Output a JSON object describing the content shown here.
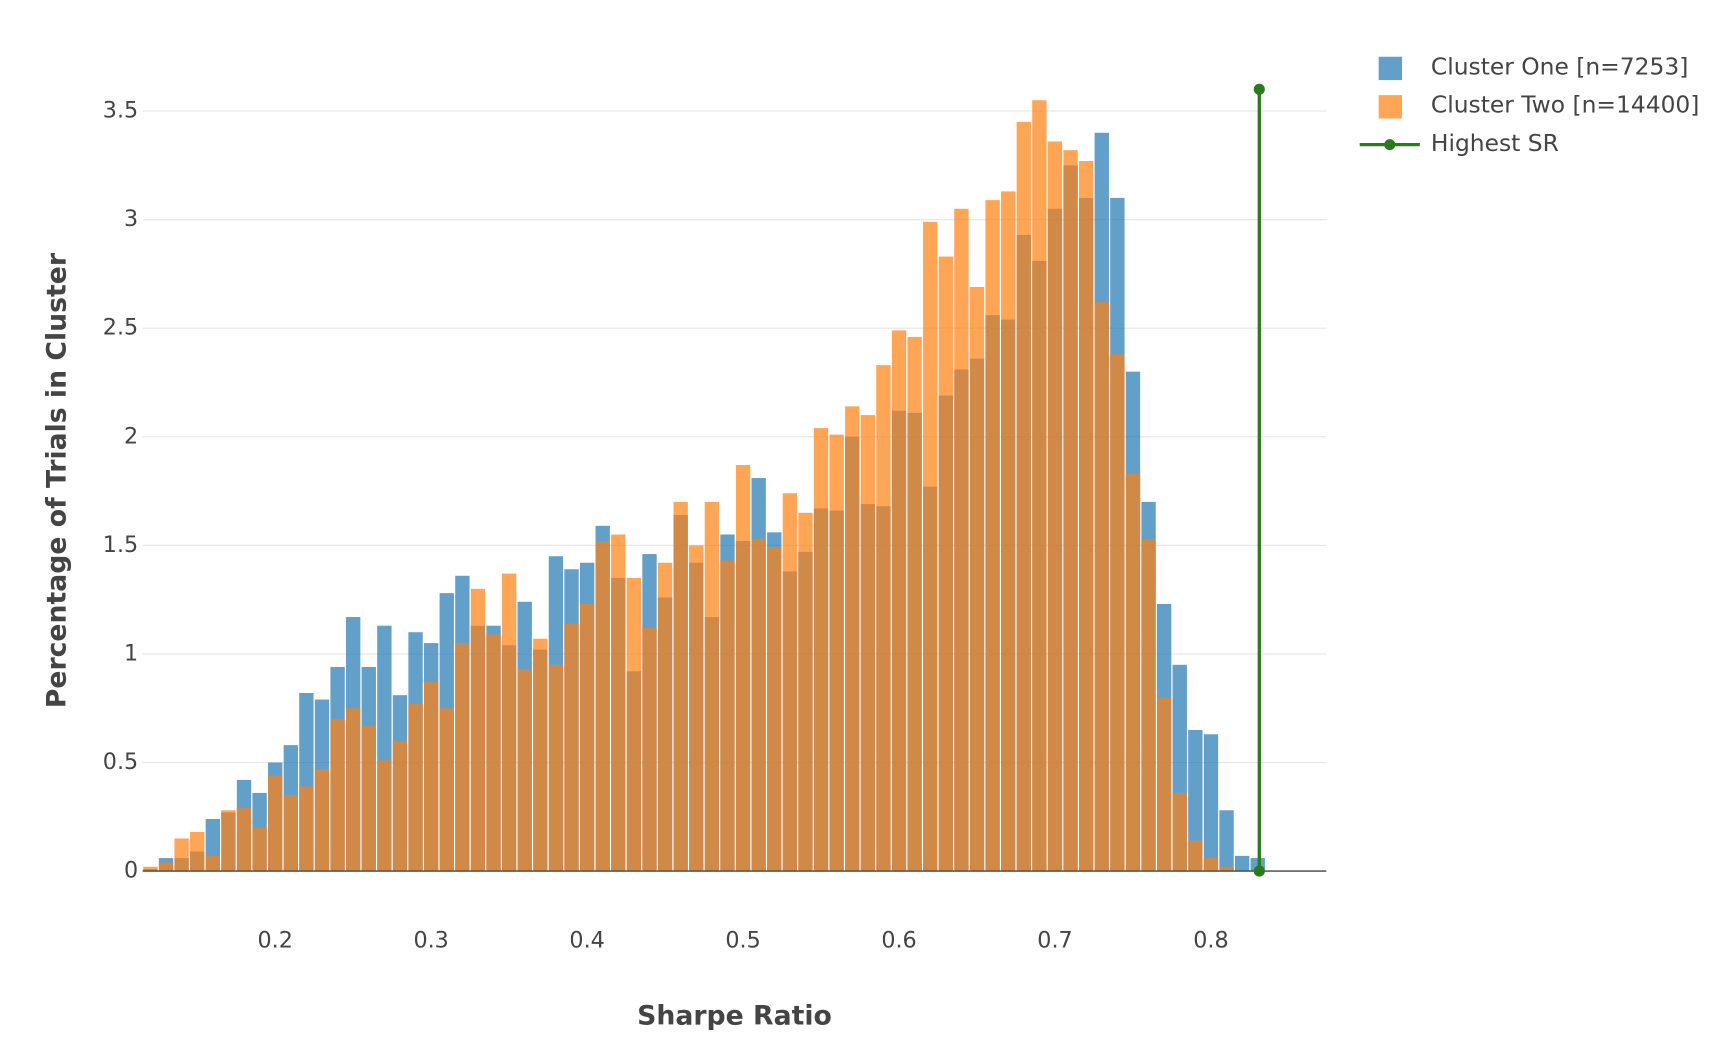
{
  "chart_data": {
    "type": "histogram",
    "x_label": "Sharpe Ratio",
    "y_label": "Percentage of Trials in Cluster",
    "bins": [
      0.115,
      0.125,
      0.135,
      0.145,
      0.155,
      0.165,
      0.175,
      0.185,
      0.195,
      0.205,
      0.215,
      0.225,
      0.235,
      0.245,
      0.255,
      0.265,
      0.275,
      0.285,
      0.295,
      0.305,
      0.315,
      0.325,
      0.335,
      0.345,
      0.355,
      0.365,
      0.375,
      0.385,
      0.395,
      0.405,
      0.415,
      0.425,
      0.435,
      0.445,
      0.455,
      0.465,
      0.475,
      0.485,
      0.495,
      0.505,
      0.515,
      0.525,
      0.535,
      0.545,
      0.555,
      0.565,
      0.575,
      0.585,
      0.595,
      0.605,
      0.615,
      0.625,
      0.635,
      0.645,
      0.655,
      0.665,
      0.675,
      0.685,
      0.695,
      0.705,
      0.715,
      0.725,
      0.735,
      0.745,
      0.755,
      0.765,
      0.775,
      0.785,
      0.795,
      0.805,
      0.815,
      0.825,
      0.835
    ],
    "series": [
      {
        "name": "Cluster One [n=7253]",
        "color": "#1f77b4",
        "values": [
          0.01,
          0.06,
          0.06,
          0.09,
          0.24,
          0.27,
          0.42,
          0.36,
          0.5,
          0.58,
          0.82,
          0.79,
          0.94,
          1.17,
          0.94,
          1.13,
          0.81,
          1.1,
          1.05,
          1.28,
          1.36,
          1.13,
          1.13,
          1.04,
          1.24,
          1.02,
          1.45,
          1.39,
          1.42,
          1.59,
          1.35,
          0.92,
          1.46,
          1.26,
          1.64,
          1.42,
          1.17,
          1.55,
          1.52,
          1.81,
          1.56,
          1.38,
          1.47,
          1.67,
          1.66,
          2.0,
          1.69,
          1.68,
          2.12,
          2.11,
          1.77,
          2.19,
          2.31,
          2.36,
          2.56,
          2.54,
          2.93,
          2.81,
          3.05,
          3.25,
          3.1,
          3.4,
          3.1,
          2.3,
          1.7,
          1.23,
          0.95,
          0.65,
          0.63,
          0.28,
          0.07,
          0.06
        ]
      },
      {
        "name": "Cluster Two [n=14400]",
        "color": "#ff7f0e",
        "values": [
          0.02,
          0.04,
          0.15,
          0.18,
          0.07,
          0.28,
          0.29,
          0.2,
          0.44,
          0.35,
          0.39,
          0.47,
          0.7,
          0.75,
          0.67,
          0.51,
          0.6,
          0.77,
          0.87,
          0.75,
          1.05,
          1.3,
          1.09,
          1.37,
          0.93,
          1.07,
          0.95,
          1.14,
          1.23,
          1.52,
          1.55,
          1.35,
          1.12,
          1.42,
          1.7,
          1.5,
          1.7,
          1.43,
          1.87,
          1.53,
          1.49,
          1.74,
          1.65,
          2.04,
          2.01,
          2.14,
          2.1,
          2.33,
          2.49,
          2.46,
          2.99,
          2.83,
          3.05,
          2.69,
          3.09,
          3.13,
          3.45,
          3.55,
          3.36,
          3.32,
          3.27,
          2.62,
          2.38,
          1.83,
          1.53,
          0.8,
          0.36,
          0.14,
          0.06,
          0.02,
          0,
          0
        ]
      }
    ],
    "lines": [
      {
        "name": "Highest SR",
        "color": "#2a7b1e",
        "x": [
          0.831,
          0.831
        ],
        "y": [
          0,
          3.6
        ]
      }
    ],
    "xlim": [
      0.115,
      0.874
    ],
    "ylim": [
      -0.08,
      3.7
    ],
    "xticks": [
      0.2,
      0.3,
      0.4,
      0.5,
      0.6,
      0.7,
      0.8
    ],
    "yticks": [
      0,
      0.5,
      1,
      1.5,
      2,
      2.5,
      3,
      3.5
    ],
    "grid": true,
    "bar_opacity": 0.7,
    "legend": "top-right"
  }
}
